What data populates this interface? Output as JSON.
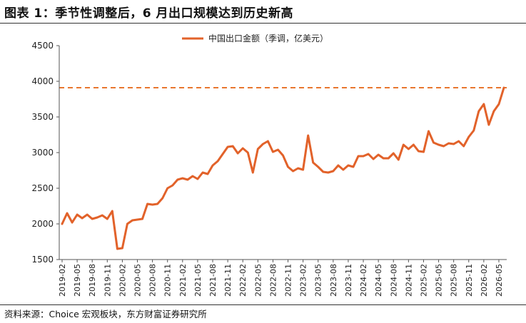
{
  "figure_title": "图表 1：季节性调整后，6 月出口规模达到历史新高",
  "source": "资料来源：Choice 宏观板块，东方财富证券研究所",
  "colors": {
    "line": "#E2622A",
    "reference": "#E8772F",
    "axis": "#555555",
    "text": "#222222"
  },
  "chart_data": {
    "type": "line",
    "title": "",
    "xlabel": "",
    "ylabel": "",
    "ylim": [
      1500,
      4500
    ],
    "yticks": [
      1500,
      2000,
      2500,
      3000,
      3500,
      4000,
      4500
    ],
    "grid": false,
    "legend_position": "top-center",
    "x_start": "2019-02",
    "xticks": [
      "2019-02",
      "2019-05",
      "2019-08",
      "2019-11",
      "2020-02",
      "2020-05",
      "2020-08",
      "2020-11",
      "2021-02",
      "2021-05",
      "2021-08",
      "2021-11",
      "2022-02",
      "2022-05",
      "2022-08",
      "2022-11",
      "2023-02",
      "2023-05",
      "2023-08",
      "2023-11",
      "2024-02",
      "2024-05",
      "2024-08",
      "2024-11",
      "2025-02",
      "2025-05",
      "2025-08",
      "2025-11",
      "2026-02",
      "2026-05"
    ],
    "series": [
      {
        "name": "中国出口金额（季调，亿美元）",
        "values": [
          2000,
          2150,
          2020,
          2130,
          2080,
          2130,
          2070,
          2090,
          2120,
          2070,
          2180,
          1650,
          1660,
          2000,
          2050,
          2060,
          2070,
          2280,
          2270,
          2280,
          2360,
          2500,
          2540,
          2620,
          2640,
          2620,
          2670,
          2630,
          2720,
          2700,
          2820,
          2880,
          2980,
          3080,
          3090,
          2990,
          3060,
          3000,
          2720,
          3050,
          3120,
          3160,
          3010,
          3040,
          2960,
          2800,
          2740,
          2780,
          2760,
          3240,
          2860,
          2800,
          2730,
          2720,
          2740,
          2820,
          2760,
          2820,
          2800,
          2950,
          2950,
          2980,
          2910,
          2970,
          2920,
          2920,
          2990,
          2900,
          3110,
          3050,
          3110,
          3020,
          3010,
          3300,
          3140,
          3110,
          3090,
          3130,
          3120,
          3160,
          3090,
          3220,
          3310,
          3580,
          3680,
          3390,
          3580,
          3680,
          3910
        ]
      }
    ],
    "reference_line": {
      "value": 3910,
      "style": "dashed"
    }
  }
}
